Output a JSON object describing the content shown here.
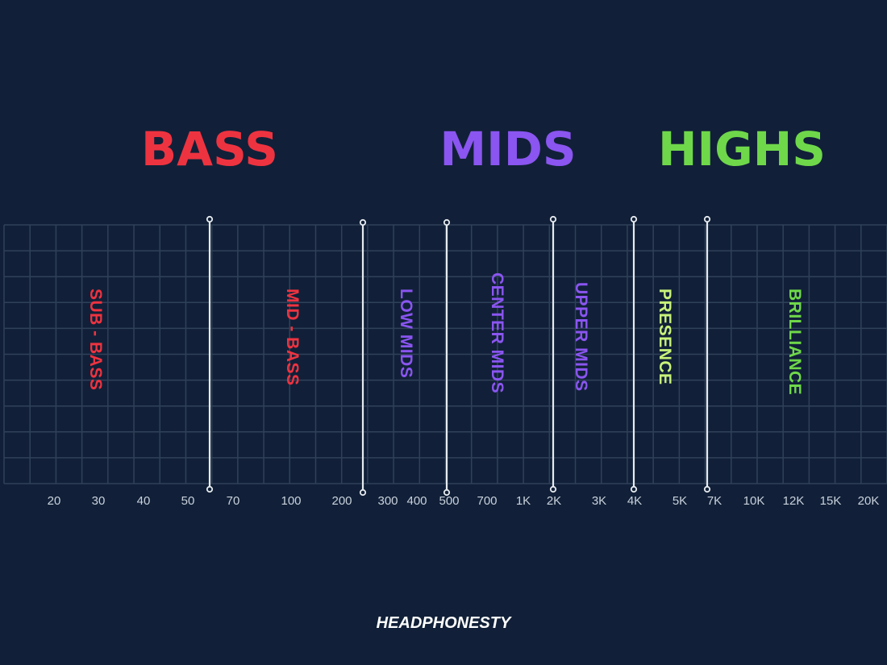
{
  "headings": {
    "bass": "BASS",
    "mids": "MIDS",
    "highs": "HIGHS"
  },
  "colors": {
    "background": "#112038",
    "grid": "#2f4159",
    "divider": "#e6eaef",
    "bass": "#ee3340",
    "mids": "#8a55f0",
    "highs": "#6fd84a",
    "presence": "#c8f27a"
  },
  "bands": [
    {
      "label": "SUB - BASS",
      "range_hz": [
        20,
        60
      ],
      "color_key": "bass"
    },
    {
      "label": "MID - BASS",
      "range_hz": [
        60,
        250
      ],
      "color_key": "bass"
    },
    {
      "label": "LOW MIDS",
      "range_hz": [
        250,
        500
      ],
      "color_key": "mids"
    },
    {
      "label": "CENTER MIDS",
      "range_hz": [
        500,
        2000
      ],
      "color_key": "mids"
    },
    {
      "label": "UPPER MIDS",
      "range_hz": [
        2000,
        4000
      ],
      "color_key": "mids"
    },
    {
      "label": "PRESENCE",
      "range_hz": [
        4000,
        6000
      ],
      "color_key": "presence"
    },
    {
      "label": "BRILLIANCE",
      "range_hz": [
        6000,
        20000
      ],
      "color_key": "highs"
    }
  ],
  "boundaries_hz": [
    60,
    250,
    500,
    2000,
    4000,
    6000
  ],
  "frequency_ticks": [
    "20",
    "30",
    "40",
    "50",
    "70",
    "100",
    "200",
    "300",
    "400",
    "500",
    "700",
    "1K",
    "2K",
    "3K",
    "4K",
    "5K",
    "7K",
    "10K",
    "12K",
    "15K",
    "20K"
  ],
  "brand": "HEADPHONESTY"
}
